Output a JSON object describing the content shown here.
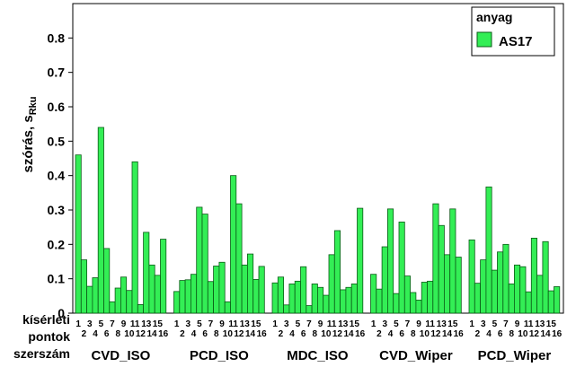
{
  "colors": {
    "bar_fill": "#33ee55",
    "bar_stroke": "#0a5a16",
    "axis": "#000000"
  },
  "chart_data": {
    "type": "bar",
    "ylabel": "szórás, s",
    "ylabel_subscript": "Rku",
    "ylim": [
      0,
      0.9
    ],
    "yticks": [
      "0",
      "0.1",
      "0.2",
      "0.3",
      "0.4",
      "0.5",
      "0.6",
      "0.7",
      "0.8"
    ],
    "row_labels": [
      "kísérleti",
      "pontok",
      "szerszám"
    ],
    "legend": {
      "title": "anyag",
      "series_name": "AS17",
      "placement": "top-right"
    },
    "groups": [
      {
        "label": "CVD_ISO",
        "categories": [
          "1",
          "2",
          "3",
          "4",
          "5",
          "6",
          "7",
          "8",
          "9",
          "10",
          "11",
          "12",
          "13",
          "14",
          "15",
          "16"
        ],
        "values": [
          0.46,
          0.155,
          0.078,
          0.103,
          0.54,
          0.188,
          0.033,
          0.073,
          0.105,
          0.066,
          0.44,
          0.025,
          0.235,
          0.14,
          0.11,
          0.215
        ]
      },
      {
        "label": "PCD_ISO",
        "categories": [
          "1",
          "2",
          "3",
          "4",
          "5",
          "6",
          "7",
          "8",
          "9",
          "10",
          "11",
          "12",
          "13",
          "14",
          "15",
          "16"
        ],
        "values": [
          0.063,
          0.095,
          0.097,
          0.113,
          0.308,
          0.288,
          0.092,
          0.137,
          0.148,
          0.033,
          0.4,
          0.318,
          0.14,
          0.172,
          0.098,
          0.136
        ]
      },
      {
        "label": "MDC_ISO",
        "categories": [
          "1",
          "2",
          "3",
          "4",
          "5",
          "6",
          "7",
          "8",
          "9",
          "10",
          "11",
          "12",
          "13",
          "14",
          "15",
          "16"
        ],
        "values": [
          0.088,
          0.105,
          0.024,
          0.085,
          0.093,
          0.135,
          0.022,
          0.085,
          0.075,
          0.052,
          0.17,
          0.24,
          0.068,
          0.075,
          0.085,
          0.305
        ]
      },
      {
        "label": "CVD_Wiper",
        "categories": [
          "1",
          "2",
          "3",
          "4",
          "5",
          "6",
          "7",
          "8",
          "9",
          "10",
          "11",
          "12",
          "13",
          "14",
          "15",
          "16"
        ],
        "values": [
          0.113,
          0.07,
          0.193,
          0.303,
          0.057,
          0.265,
          0.108,
          0.06,
          0.038,
          0.09,
          0.093,
          0.318,
          0.255,
          0.17,
          0.303,
          0.163
        ]
      },
      {
        "label": "PCD_Wiper",
        "categories": [
          "1",
          "2",
          "3",
          "4",
          "5",
          "6",
          "7",
          "8",
          "9",
          "10",
          "11",
          "12",
          "13",
          "14",
          "15",
          "16"
        ],
        "values": [
          0.213,
          0.087,
          0.155,
          0.367,
          0.125,
          0.178,
          0.2,
          0.085,
          0.14,
          0.135,
          0.062,
          0.218,
          0.11,
          0.208,
          0.065,
          0.077
        ]
      }
    ]
  }
}
